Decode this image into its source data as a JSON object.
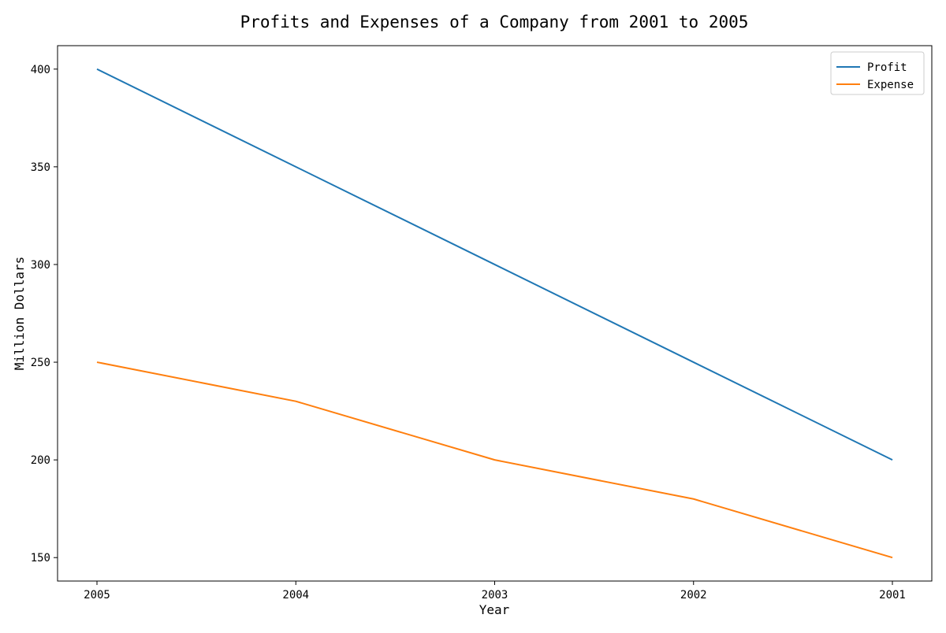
{
  "chart_data": {
    "type": "line",
    "title": "Profits and Expenses of a Company from 2001 to 2005",
    "xlabel": "Year",
    "ylabel": "Million Dollars",
    "categories": [
      "2005",
      "2004",
      "2003",
      "2002",
      "2001"
    ],
    "series": [
      {
        "name": "Profit",
        "color": "#1f77b4",
        "values": [
          400,
          350,
          300,
          250,
          200
        ]
      },
      {
        "name": "Expense",
        "color": "#ff7f0e",
        "values": [
          250,
          230,
          200,
          180,
          150
        ]
      }
    ],
    "ylim": [
      138,
      412
    ],
    "yticks": [
      150,
      200,
      250,
      300,
      350,
      400
    ],
    "grid": false,
    "legend_position": "top-right"
  }
}
